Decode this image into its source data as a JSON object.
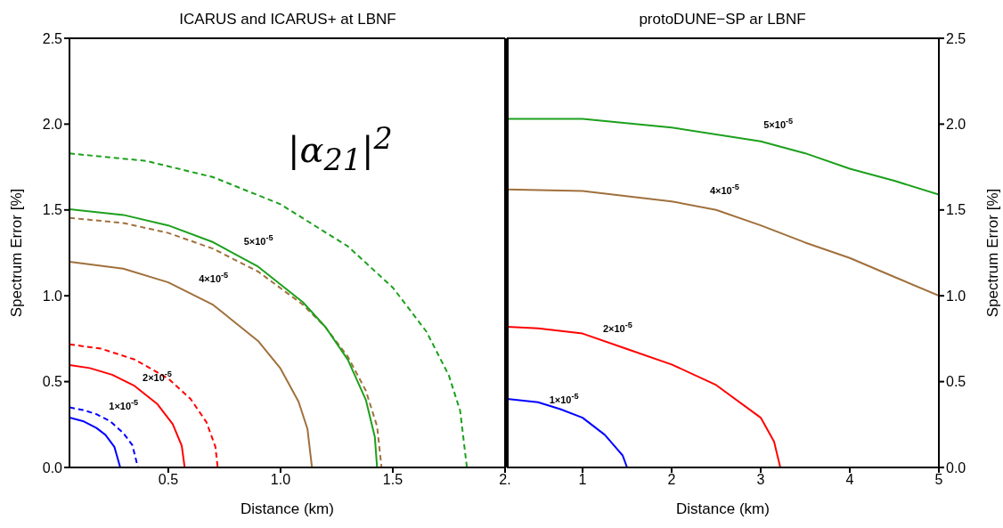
{
  "chart_data": [
    {
      "type": "line",
      "title": "ICARUS and ICARUS+ at LBNF",
      "xlabel": "Distance (km)",
      "ylabel": "Spectrum Error [%]",
      "xlim": [
        0.06,
        2.0
      ],
      "xticks": [
        0.5,
        {
          "value": 1.0,
          "label": "1.0"
        },
        1.5,
        {
          "value": 2.0,
          "label": "2."
        }
      ],
      "ylim": [
        0,
        2.5
      ],
      "yticks": [
        {
          "value": 0,
          "label": "0.0"
        },
        0.5,
        {
          "value": 1,
          "label": "1.0"
        },
        1.5,
        {
          "value": 2,
          "label": "2.0"
        },
        2.5
      ],
      "series": [
        {
          "color": "#0000ff",
          "line_style": "solid",
          "x": [
            0.06,
            0.12,
            0.18,
            0.22,
            0.26,
            0.286
          ],
          "values": [
            0.29,
            0.27,
            0.23,
            0.19,
            0.12,
            0
          ]
        },
        {
          "color": "#0000ff",
          "line_style": "dashed",
          "x": [
            0.06,
            0.12,
            0.18,
            0.24,
            0.3,
            0.34,
            0.365
          ],
          "values": [
            0.35,
            0.335,
            0.31,
            0.27,
            0.2,
            0.13,
            0
          ]
        },
        {
          "color": "#ff0000",
          "line_style": "solid",
          "x": [
            0.06,
            0.15,
            0.25,
            0.35,
            0.45,
            0.52,
            0.56,
            0.573
          ],
          "values": [
            0.597,
            0.579,
            0.54,
            0.475,
            0.371,
            0.252,
            0.127,
            0
          ]
        },
        {
          "color": "#ff0000",
          "line_style": "dashed",
          "x": [
            0.06,
            0.2,
            0.35,
            0.5,
            0.6,
            0.67,
            0.71,
            0.72
          ],
          "values": [
            0.717,
            0.692,
            0.629,
            0.518,
            0.398,
            0.264,
            0.12,
            0
          ]
        },
        {
          "color": "#a0703c",
          "line_style": "solid",
          "x": [
            0.06,
            0.3,
            0.5,
            0.7,
            0.9,
            1.0,
            1.08,
            1.12,
            1.14
          ],
          "values": [
            1.198,
            1.158,
            1.078,
            0.947,
            0.737,
            0.576,
            0.384,
            0.224,
            0
          ]
        },
        {
          "color": "#a0703c",
          "line_style": "dashed",
          "x": [
            0.06,
            0.3,
            0.5,
            0.7,
            0.9,
            1.1,
            1.2,
            1.3,
            1.38,
            1.43,
            1.45
          ],
          "values": [
            1.454,
            1.424,
            1.366,
            1.274,
            1.141,
            0.948,
            0.817,
            0.645,
            0.447,
            0.24,
            0
          ]
        },
        {
          "color": "#1ca01c",
          "line_style": "solid",
          "x": [
            0.06,
            0.3,
            0.5,
            0.7,
            0.9,
            1.1,
            1.2,
            1.3,
            1.38,
            1.42,
            1.43
          ],
          "values": [
            1.504,
            1.471,
            1.41,
            1.312,
            1.17,
            0.962,
            0.818,
            0.627,
            0.394,
            0.178,
            0
          ]
        },
        {
          "color": "#1ca01c",
          "line_style": "dashed",
          "x": [
            0.06,
            0.4,
            0.7,
            1.0,
            1.3,
            1.5,
            1.65,
            1.75,
            1.8,
            1.83
          ],
          "values": [
            1.829,
            1.786,
            1.691,
            1.533,
            1.288,
            1.048,
            0.791,
            0.535,
            0.33,
            0
          ]
        }
      ],
      "annotations": [
        "|α$_{21}$|$^{2}$",
        "5×10$^{-5}$",
        "4×10$^{-5}$",
        "2×10$^{-5}$",
        "1×10$^{-5}$"
      ]
    },
    {
      "type": "line",
      "title": "protoDUNE−SP ar LBNF",
      "xlabel": "Distance (km)",
      "y2label": "Spectrum Error [%]",
      "xlim": [
        0.15,
        5
      ],
      "xticks": [
        1,
        2,
        3,
        4,
        5
      ],
      "y2lim": [
        0,
        2.5
      ],
      "y2ticks": [
        {
          "value": 0,
          "label": "0.0"
        },
        0.5,
        {
          "value": 1,
          "label": "1.0"
        },
        1.5,
        {
          "value": 2,
          "label": "2.0"
        },
        2.5
      ],
      "series": [
        {
          "color": "#0000ff",
          "line_style": "solid",
          "axis": "y2",
          "x": [
            0.15,
            0.5,
            0.75,
            1.0,
            1.25,
            1.45,
            1.5
          ],
          "values": [
            0.4,
            0.38,
            0.34,
            0.29,
            0.19,
            0.07,
            0
          ]
        },
        {
          "color": "#ff0000",
          "line_style": "solid",
          "axis": "y2",
          "x": [
            0.15,
            0.5,
            1,
            1.5,
            2,
            2.5,
            3,
            3.15,
            3.22
          ],
          "values": [
            0.82,
            0.81,
            0.78,
            0.69,
            0.6,
            0.48,
            0.29,
            0.15,
            0
          ]
        },
        {
          "color": "#a0703c",
          "line_style": "solid",
          "axis": "y2",
          "x": [
            0.15,
            1,
            2,
            2.5,
            3,
            3.5,
            4,
            4.5,
            5
          ],
          "values": [
            1.62,
            1.61,
            1.55,
            1.5,
            1.41,
            1.31,
            1.22,
            1.11,
            1.0
          ]
        },
        {
          "color": "#1ca01c",
          "line_style": "solid",
          "axis": "y2",
          "x": [
            0.15,
            1,
            2,
            3,
            3.5,
            4,
            4.5,
            5
          ],
          "values": [
            2.03,
            2.03,
            1.98,
            1.9,
            1.83,
            1.74,
            1.67,
            1.59
          ]
        }
      ],
      "annotations": [
        "5×10$^{-5}$",
        "4×10$^{-5}$",
        "2×10$^{-5}$",
        "1×10$^{-5}$"
      ]
    }
  ]
}
